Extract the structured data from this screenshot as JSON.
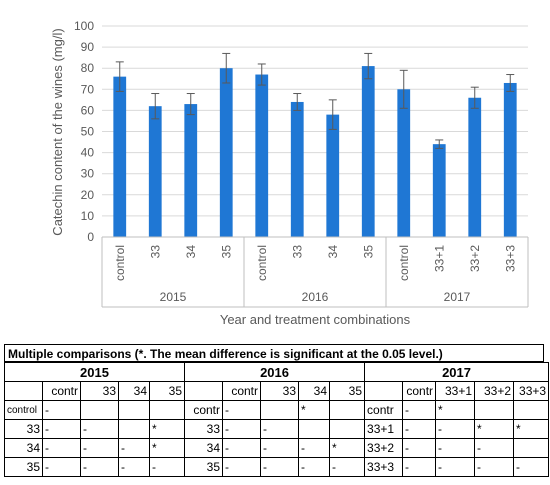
{
  "chart_data": {
    "type": "bar",
    "ylabel": "Catechin content of the wines (mg/l)",
    "xlabel": "Year and treatment combinations",
    "ylim": [
      0,
      100
    ],
    "yticks": [
      0,
      10,
      20,
      30,
      40,
      50,
      60,
      70,
      80,
      90,
      100
    ],
    "grid": true,
    "bar_color": "#1f77d4",
    "groups": [
      {
        "year": "2015",
        "categories": [
          "control",
          "33",
          "34",
          "35"
        ],
        "values": [
          76,
          62,
          63,
          80
        ],
        "errors": [
          7,
          6,
          5,
          7
        ]
      },
      {
        "year": "2016",
        "categories": [
          "control",
          "33",
          "34",
          "35"
        ],
        "values": [
          77,
          64,
          58,
          81
        ],
        "errors": [
          5,
          4,
          7,
          6
        ]
      },
      {
        "year": "2017",
        "categories": [
          "control",
          "33+1",
          "33+2",
          "33+3"
        ],
        "values": [
          70,
          44,
          66,
          73
        ],
        "errors": [
          9,
          2,
          5,
          4
        ]
      }
    ]
  },
  "comparisons": {
    "title": "Multiple comparisons (*. The mean difference is significant at the 0.05 level.)",
    "years": [
      "2015",
      "2016",
      "2017"
    ],
    "blocks": [
      {
        "col_headers": [
          "contr",
          "33",
          "34",
          "35"
        ],
        "rows": [
          {
            "label": "control",
            "cells": [
              "-",
              "",
              "",
              ""
            ]
          },
          {
            "label": "33",
            "cells": [
              "-",
              "-",
              "",
              "*"
            ]
          },
          {
            "label": "34",
            "cells": [
              "-",
              "-",
              "-",
              "*"
            ]
          },
          {
            "label": "35",
            "cells": [
              "-",
              "-",
              "-",
              "-"
            ]
          }
        ]
      },
      {
        "col_headers": [
          "contr",
          "33",
          "34",
          "35"
        ],
        "rows": [
          {
            "label": "contr",
            "cells": [
              "-",
              "",
              "*",
              ""
            ]
          },
          {
            "label": "33",
            "cells": [
              "-",
              "-",
              "",
              ""
            ]
          },
          {
            "label": "34",
            "cells": [
              "-",
              "-",
              "-",
              "*"
            ]
          },
          {
            "label": "35",
            "cells": [
              "-",
              "-",
              "-",
              "-"
            ]
          }
        ]
      },
      {
        "col_headers": [
          "contr",
          "33+1",
          "33+2",
          "33+3"
        ],
        "rows": [
          {
            "label": "contr",
            "cells": [
              "-",
              "*",
              "",
              ""
            ]
          },
          {
            "label": "33+1",
            "cells": [
              "-",
              "-",
              "*",
              "*"
            ]
          },
          {
            "label": "33+2",
            "cells": [
              "-",
              "-",
              "-",
              ""
            ]
          },
          {
            "label": "33+3",
            "cells": [
              "-",
              "-",
              "-",
              "-"
            ]
          }
        ]
      }
    ]
  }
}
